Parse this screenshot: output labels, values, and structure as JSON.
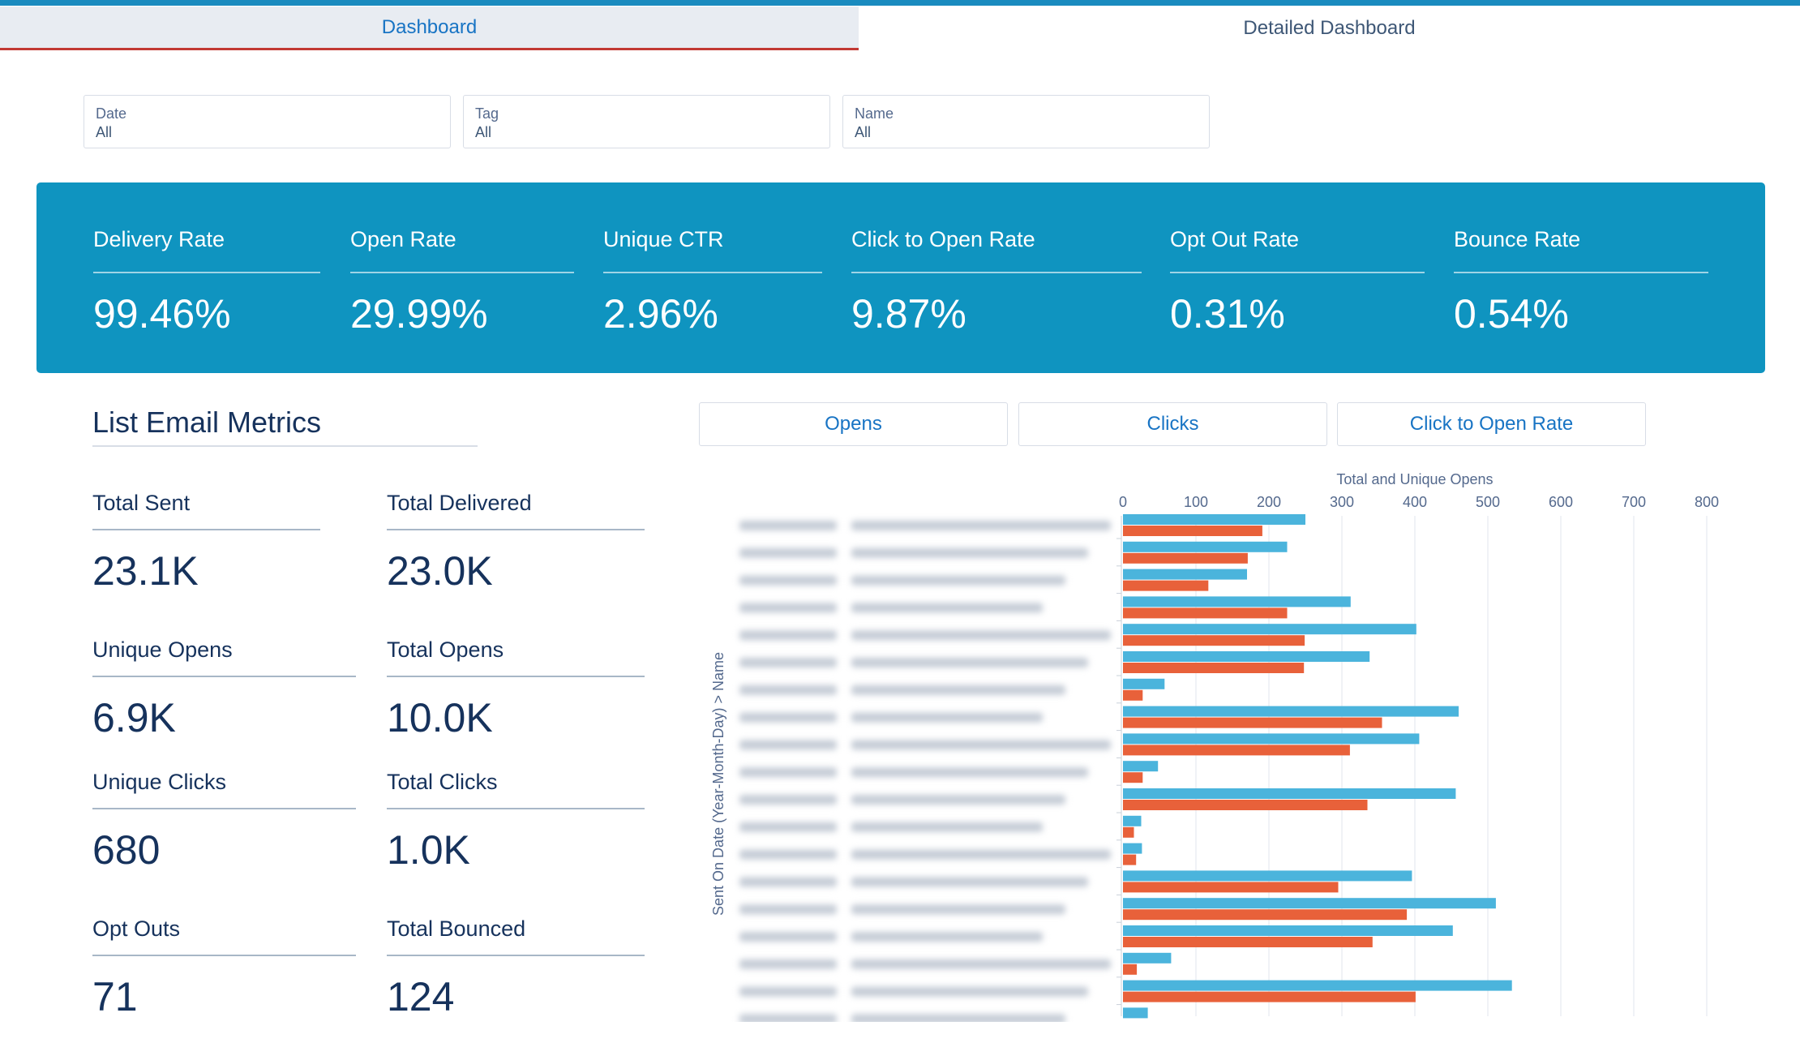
{
  "tabs": [
    {
      "label": "Dashboard",
      "active": true
    },
    {
      "label": "Detailed Dashboard",
      "active": false
    }
  ],
  "filters": [
    {
      "label": "Date",
      "value": "All"
    },
    {
      "label": "Tag",
      "value": "All"
    },
    {
      "label": "Name",
      "value": "All"
    }
  ],
  "kpis": [
    {
      "label": "Delivery Rate",
      "value": "99.46%"
    },
    {
      "label": "Open Rate",
      "value": "29.99%"
    },
    {
      "label": "Unique CTR",
      "value": "2.96%"
    },
    {
      "label": "Click to Open Rate",
      "value": "9.87%"
    },
    {
      "label": "Opt Out Rate",
      "value": "0.31%"
    },
    {
      "label": "Bounce Rate",
      "value": "0.54%"
    }
  ],
  "list_metrics": {
    "title": "List Email Metrics",
    "items": [
      {
        "label": "Total Sent",
        "value": "23.1K"
      },
      {
        "label": "Total Delivered",
        "value": "23.0K"
      },
      {
        "label": "Unique Opens",
        "value": "6.9K"
      },
      {
        "label": "Total Opens",
        "value": "10.0K"
      },
      {
        "label": "Unique Clicks",
        "value": "680"
      },
      {
        "label": "Total Clicks",
        "value": "1.0K"
      },
      {
        "label": "Opt Outs",
        "value": "71"
      },
      {
        "label": "Total Bounced",
        "value": "124"
      }
    ]
  },
  "chart_buttons": [
    "Opens",
    "Clicks",
    "Click to Open Rate"
  ],
  "colors": {
    "kpi_background": "#0f94c0",
    "accent_blue": "#1874c4",
    "tab_active_underline": "#c23934",
    "series_total": "#4bb4dc",
    "series_unique": "#e8613a"
  },
  "chart_data": {
    "type": "bar",
    "orientation": "horizontal",
    "title": "Total and Unique Opens",
    "ylabel": "Sent On Date (Year-Month-Day) > Name",
    "xlim": [
      0,
      800
    ],
    "xticks": [
      0,
      100,
      200,
      300,
      400,
      500,
      600,
      700,
      800
    ],
    "grid": true,
    "category_labels_blurred": true,
    "series": [
      {
        "values": [
          250,
          225,
          170,
          312,
          402,
          338,
          57,
          460,
          406,
          48,
          456,
          25,
          26,
          396,
          511,
          452,
          66,
          533,
          34
        ]
      },
      {
        "values": [
          191,
          171,
          117,
          225,
          249,
          248,
          27,
          355,
          311,
          27,
          335,
          15,
          18,
          295,
          389,
          342,
          19,
          401,
          0
        ]
      }
    ]
  }
}
